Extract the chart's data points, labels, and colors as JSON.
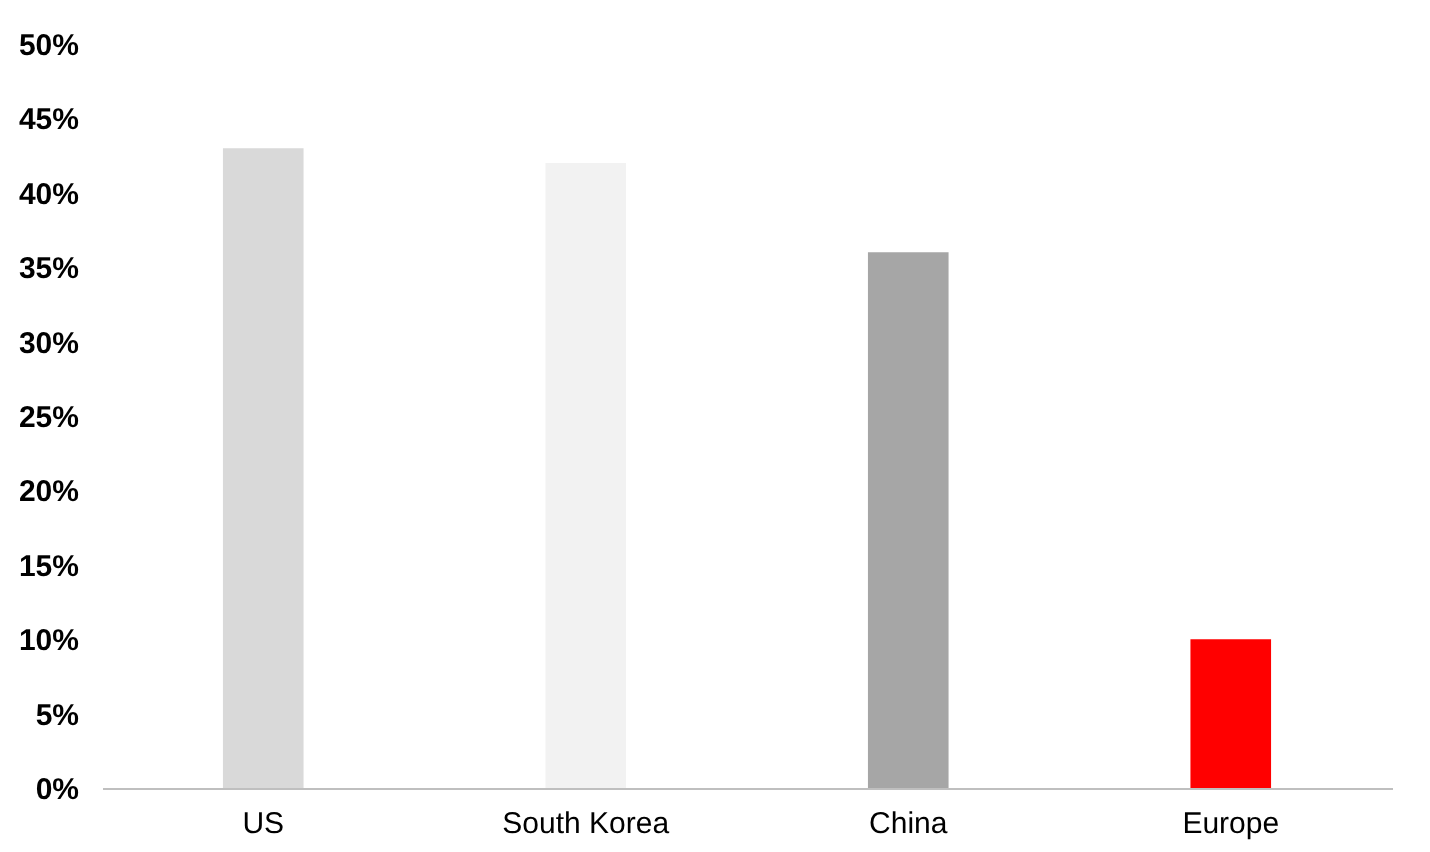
{
  "chart_data": {
    "type": "bar",
    "categories": [
      "US",
      "South Korea",
      "China",
      "Europe"
    ],
    "values": [
      43,
      42,
      36,
      10
    ],
    "colors": [
      "#d9d9d9",
      "#f2f2f2",
      "#a6a6a6",
      "#ff0000"
    ],
    "ylim": [
      0,
      50
    ],
    "yticks": [
      {
        "value": 0,
        "label": "0%"
      },
      {
        "value": 5,
        "label": "5%"
      },
      {
        "value": 10,
        "label": "10%"
      },
      {
        "value": 15,
        "label": "15%"
      },
      {
        "value": 20,
        "label": "20%"
      },
      {
        "value": 25,
        "label": "25%"
      },
      {
        "value": 30,
        "label": "30%"
      },
      {
        "value": 35,
        "label": "35%"
      },
      {
        "value": 40,
        "label": "40%"
      },
      {
        "value": 45,
        "label": "45%"
      },
      {
        "value": 50,
        "label": "50%"
      }
    ],
    "grid": false
  }
}
